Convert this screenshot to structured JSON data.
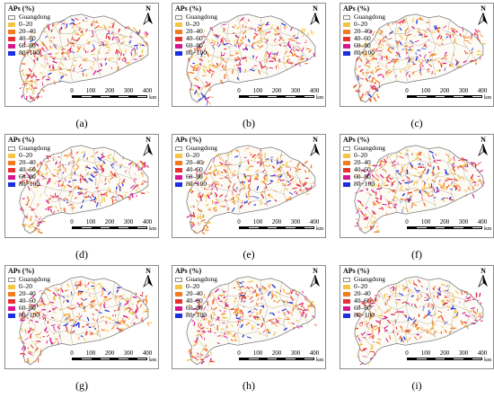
{
  "legend": {
    "title": "APs (%)",
    "boundary_label": "Guangdong",
    "classes": [
      {
        "label": "0–20",
        "color": "#f4c542"
      },
      {
        "label": "20–40",
        "color": "#f47b20"
      },
      {
        "label": "40–60",
        "color": "#e83232"
      },
      {
        "label": "60–80",
        "color": "#d6168f"
      },
      {
        "label": "80−100",
        "color": "#1b2ee0"
      }
    ]
  },
  "north_arrow": {
    "label": "N"
  },
  "scale_bar": {
    "ticks": [
      "0",
      "100",
      "200",
      "300",
      "400"
    ],
    "unit": "km"
  },
  "panels": [
    {
      "caption": "(a)"
    },
    {
      "caption": "(b)"
    },
    {
      "caption": "(c)"
    },
    {
      "caption": "(d)"
    },
    {
      "caption": "(e)"
    },
    {
      "caption": "(f)"
    },
    {
      "caption": "(g)"
    },
    {
      "caption": "(h)"
    },
    {
      "caption": "(i)"
    }
  ]
}
